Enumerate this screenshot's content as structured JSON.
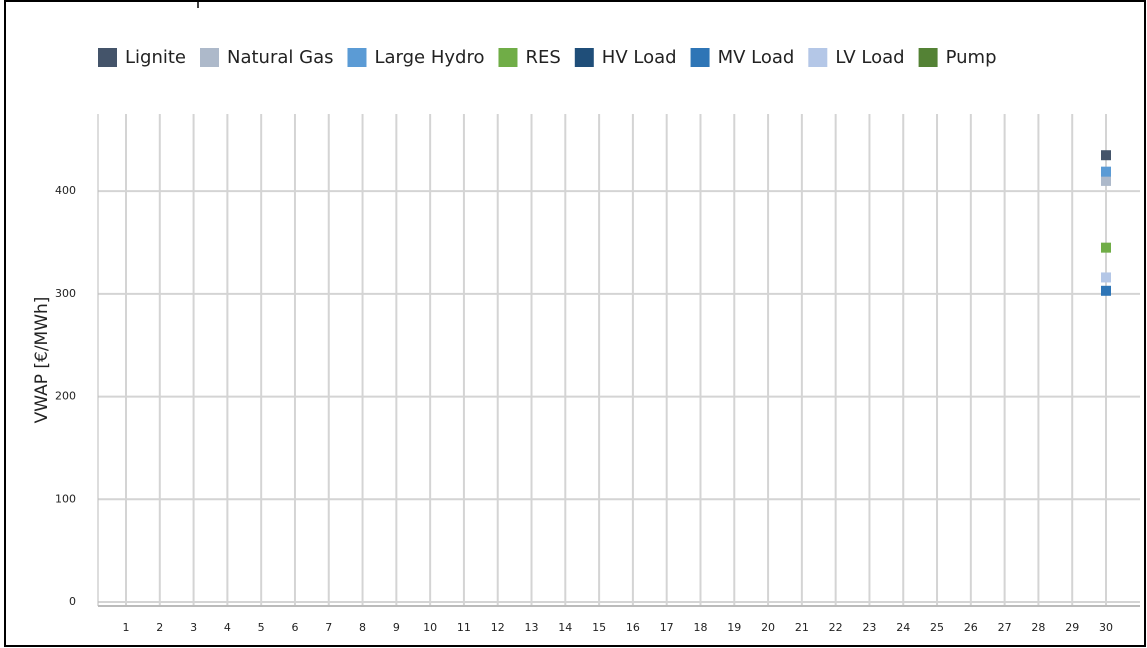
{
  "chart_data": {
    "type": "scatter",
    "y_label": "VWAP [€/MWh]",
    "categories": [
      "1",
      "2",
      "3",
      "4",
      "5",
      "6",
      "7",
      "8",
      "9",
      "10",
      "11",
      "12",
      "13",
      "14",
      "15",
      "16",
      "17",
      "18",
      "19",
      "20",
      "21",
      "22",
      "23",
      "24",
      "25",
      "26",
      "27",
      "28",
      "29",
      "30"
    ],
    "series": [
      {
        "name": "Lignite",
        "color": "#44546a",
        "values": [
          null,
          null,
          null,
          null,
          null,
          null,
          null,
          null,
          null,
          null,
          null,
          null,
          null,
          null,
          null,
          null,
          null,
          null,
          null,
          null,
          null,
          null,
          null,
          null,
          null,
          null,
          null,
          null,
          null,
          435
        ]
      },
      {
        "name": "Natural Gas",
        "color": "#adb9ca",
        "values": [
          null,
          null,
          null,
          null,
          null,
          null,
          null,
          null,
          null,
          null,
          null,
          null,
          null,
          null,
          null,
          null,
          null,
          null,
          null,
          null,
          null,
          null,
          null,
          null,
          null,
          null,
          null,
          null,
          null,
          410
        ]
      },
      {
        "name": "Large Hydro",
        "color": "#5b9bd5",
        "values": [
          null,
          null,
          null,
          null,
          null,
          null,
          null,
          null,
          null,
          null,
          null,
          null,
          null,
          null,
          null,
          null,
          null,
          null,
          null,
          null,
          null,
          null,
          null,
          null,
          null,
          null,
          null,
          null,
          null,
          419
        ]
      },
      {
        "name": "RES",
        "color": "#70ad47",
        "values": [
          null,
          null,
          null,
          null,
          null,
          null,
          null,
          null,
          null,
          null,
          null,
          null,
          null,
          null,
          null,
          null,
          null,
          null,
          null,
          null,
          null,
          null,
          null,
          null,
          null,
          null,
          null,
          null,
          null,
          345
        ]
      },
      {
        "name": "HV Load",
        "color": "#1f4e79",
        "values": [
          null,
          null,
          null,
          null,
          null,
          null,
          null,
          null,
          null,
          null,
          null,
          null,
          null,
          null,
          null,
          null,
          null,
          null,
          null,
          null,
          null,
          null,
          null,
          null,
          null,
          null,
          null,
          null,
          null,
          null
        ]
      },
      {
        "name": "MV Load",
        "color": "#2e75b6",
        "values": [
          null,
          null,
          null,
          null,
          null,
          null,
          null,
          null,
          null,
          null,
          null,
          null,
          null,
          null,
          null,
          null,
          null,
          null,
          null,
          null,
          null,
          null,
          null,
          null,
          null,
          null,
          null,
          null,
          null,
          303
        ]
      },
      {
        "name": "LV Load",
        "color": "#b4c7e7",
        "values": [
          null,
          null,
          null,
          null,
          null,
          null,
          null,
          null,
          null,
          null,
          null,
          null,
          null,
          null,
          null,
          null,
          null,
          null,
          null,
          null,
          null,
          null,
          null,
          null,
          null,
          null,
          null,
          null,
          null,
          316
        ]
      },
      {
        "name": "Pump",
        "color": "#548235",
        "values": [
          null,
          null,
          null,
          null,
          null,
          null,
          null,
          null,
          null,
          null,
          null,
          null,
          null,
          null,
          null,
          null,
          null,
          null,
          null,
          null,
          null,
          null,
          null,
          null,
          null,
          null,
          null,
          null,
          null,
          null
        ]
      }
    ],
    "ylim": [
      0,
      480
    ],
    "yticks": [
      0,
      100,
      200,
      300,
      400
    ],
    "grid": true
  }
}
